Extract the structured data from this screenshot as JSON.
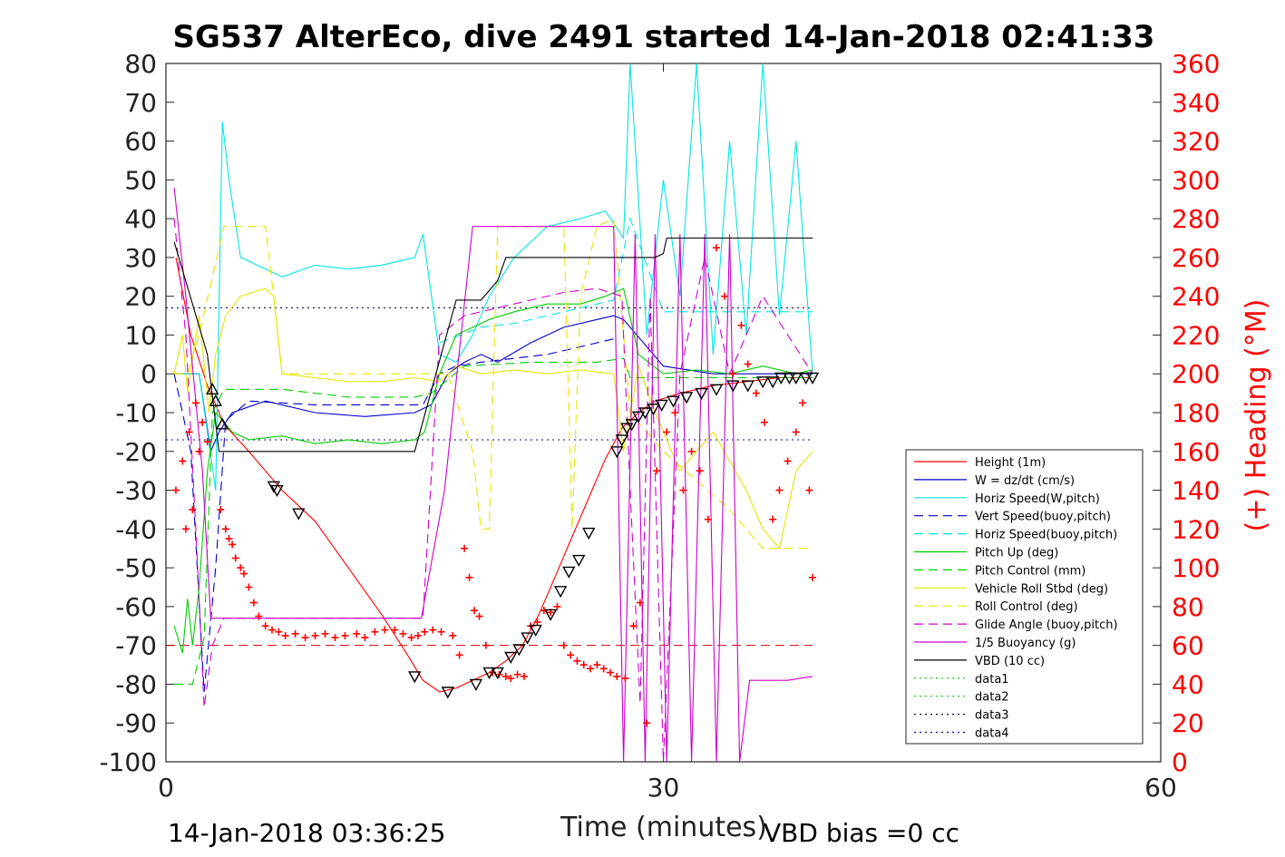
{
  "chart_data": {
    "type": "line",
    "title": "SG537 AlterEco, dive 2491 started 14-Jan-2018 02:41:33",
    "xlabel": "Time (minutes)",
    "ylabel_right": "(+) Heading (°M)",
    "xlim": [
      0,
      60
    ],
    "ylim": [
      -100,
      80
    ],
    "ylim_right": [
      0,
      360
    ],
    "x_ticks": [
      0,
      30,
      60
    ],
    "y_ticks": [
      80,
      70,
      60,
      50,
      40,
      30,
      20,
      10,
      0,
      -10,
      -20,
      -30,
      -40,
      -50,
      -60,
      -70,
      -80,
      -90,
      -100
    ],
    "y_ticks_right": [
      360,
      340,
      320,
      300,
      280,
      260,
      240,
      220,
      200,
      180,
      160,
      140,
      120,
      100,
      80,
      60,
      40,
      20,
      0
    ],
    "footer_left": "14-Jan-2018 03:36:25",
    "footer_right": "VBD bias =0 cc",
    "legend": [
      {
        "label": "Height (1m)",
        "color": "#ff0000",
        "dash": "solid"
      },
      {
        "label": "W = dz/dt (cm/s)",
        "color": "#0000cc",
        "dash": "solid"
      },
      {
        "label": "Horiz Speed(W,pitch)",
        "color": "#00e5e5",
        "dash": "solid"
      },
      {
        "label": "Vert Speed(buoy,pitch)",
        "color": "#0000cc",
        "dash": "dash"
      },
      {
        "label": "Horiz Speed(buoy,pitch)",
        "color": "#00e5e5",
        "dash": "dash"
      },
      {
        "label": "Pitch Up (deg)",
        "color": "#00cc00",
        "dash": "solid"
      },
      {
        "label": "Pitch Control (mm)",
        "color": "#00cc00",
        "dash": "dash"
      },
      {
        "label": "Vehicle Roll Stbd (deg)",
        "color": "#e5e500",
        "dash": "solid"
      },
      {
        "label": "Roll Control (deg)",
        "color": "#e5e500",
        "dash": "dash"
      },
      {
        "label": "Glide Angle (buoy,pitch)",
        "color": "#cc00cc",
        "dash": "dash"
      },
      {
        "label": "1/5 Buoyancy (g)",
        "color": "#cc00cc",
        "dash": "solid"
      },
      {
        "label": "VBD (10 cc)",
        "color": "#000000",
        "dash": "solid"
      },
      {
        "label": "data1",
        "color": "#00cc00",
        "dash": "dot"
      },
      {
        "label": "data2",
        "color": "#00cc00",
        "dash": "dot"
      },
      {
        "label": "data3",
        "color": "#000066",
        "dash": "dot"
      },
      {
        "label": "data4",
        "color": "#0000cc",
        "dash": "dot"
      }
    ],
    "series": [
      {
        "name": "Height (1m)",
        "color": "#ff0000",
        "dash": "solid",
        "x": [
          0.6,
          1.5,
          2.5,
          3.5,
          5,
          7,
          9,
          11,
          13,
          14.5,
          15.5,
          16.5,
          17.5,
          18.5,
          19.5,
          20.5,
          21.5,
          22.5,
          23.5,
          24.5,
          25.5,
          26.5,
          27.5,
          28.5,
          29.5,
          31,
          33,
          35,
          37,
          39
        ],
        "y": [
          30,
          10,
          -3,
          -13,
          -20,
          -30,
          -38,
          -50,
          -62,
          -72,
          -79,
          -82,
          -81,
          -79,
          -77,
          -74,
          -70,
          -62,
          -52,
          -42,
          -32,
          -22,
          -14,
          -10,
          -7,
          -5,
          -3,
          -2,
          -1,
          -1
        ]
      },
      {
        "name": "W = dz/dt (cm/s)",
        "color": "#0000cc",
        "dash": "solid",
        "x": [
          0.5,
          2,
          2.7,
          3.2,
          4,
          6,
          9,
          12,
          15,
          16,
          17,
          18,
          19,
          20,
          22,
          24,
          26,
          27,
          27.6,
          30,
          33,
          36,
          39
        ],
        "y": [
          0,
          0,
          -20,
          -15,
          -10,
          -7,
          -10,
          -11,
          -10,
          -8,
          0,
          3,
          5,
          3,
          8,
          12,
          14,
          15,
          14,
          2,
          0,
          0,
          0
        ]
      },
      {
        "name": "Horiz Speed(W,pitch)",
        "color": "#00e5e5",
        "dash": "solid",
        "x": [
          0.5,
          2,
          3,
          3.4,
          3.8,
          4.5,
          5.5,
          7,
          9,
          11,
          13,
          15,
          15.5,
          16.5,
          17.5,
          18.5,
          19.5,
          21,
          23,
          25,
          26.5,
          27.6,
          28,
          29,
          30,
          31,
          32,
          33,
          34,
          35,
          36,
          37,
          38,
          39
        ],
        "y": [
          0,
          0,
          -30,
          65,
          50,
          30,
          28,
          25,
          28,
          27,
          28,
          30,
          36,
          5,
          3,
          10,
          20,
          30,
          38,
          40,
          42,
          35,
          80,
          10,
          50,
          20,
          80,
          5,
          60,
          10,
          80,
          15,
          60,
          0
        ]
      },
      {
        "name": "Vert Speed(buoy,pitch)",
        "color": "#0000cc",
        "dash": "dash",
        "x": [
          0.5,
          1.5,
          2.3,
          3,
          3.6,
          5,
          9,
          14,
          15.5,
          16.5,
          17.5,
          19,
          21,
          23,
          25,
          27
        ],
        "y": [
          0,
          -20,
          -82,
          -50,
          -12,
          -7,
          -8,
          -8,
          -8,
          0,
          2,
          3,
          4,
          5,
          7,
          9
        ]
      },
      {
        "name": "Horiz Speed(buoy,pitch)",
        "color": "#00e5e5",
        "dash": "dash",
        "x": [
          16.5,
          19,
          21,
          23,
          25,
          27,
          28,
          30,
          32,
          34,
          36,
          37,
          39
        ],
        "y": [
          8,
          12,
          13,
          15,
          17,
          19,
          40,
          16,
          16,
          16,
          16,
          16,
          16
        ]
      },
      {
        "name": "Pitch Up (deg)",
        "color": "#00cc00",
        "dash": "solid",
        "x": [
          0.5,
          1,
          1.3,
          1.6,
          2,
          2.5,
          3,
          3.4,
          4,
          5,
          7,
          9,
          11,
          13,
          15,
          15.6,
          16.5,
          17.5,
          18.5,
          19.5,
          21,
          23,
          25,
          26.5,
          27.6,
          28.5,
          30,
          32,
          34,
          36,
          38,
          39
        ],
        "y": [
          -65,
          -72,
          -58,
          -70,
          -55,
          -25,
          -10,
          -12,
          -15,
          -17,
          -16,
          -18,
          -17,
          -18,
          -17,
          -15,
          0,
          10,
          12,
          14,
          16,
          18,
          18,
          20,
          22,
          5,
          0,
          1,
          0,
          2,
          0,
          1
        ]
      },
      {
        "name": "Pitch Control (mm)",
        "color": "#00cc00",
        "dash": "dash",
        "x": [
          0.5,
          1.6,
          2.3,
          2.8,
          3.5,
          7,
          11,
          15,
          16,
          18,
          22,
          26,
          27.6,
          28,
          30,
          33,
          36,
          39
        ],
        "y": [
          -80,
          -80,
          -68,
          -10,
          -4,
          -4,
          -6,
          -6,
          -5,
          2,
          3,
          3,
          4,
          -1,
          -1,
          -1,
          -1,
          -1
        ]
      },
      {
        "name": "Vehicle Roll Stbd (deg)",
        "color": "#e5e500",
        "dash": "solid",
        "x": [
          0.5,
          1,
          1.3,
          2,
          2.6,
          3,
          3.6,
          4.5,
          6,
          6.5,
          7,
          9,
          11,
          13,
          15,
          16.5,
          17.5,
          19,
          21,
          23,
          25,
          27,
          27.6,
          28.5,
          29.5,
          31,
          33,
          35,
          36,
          37,
          38,
          39
        ],
        "y": [
          0,
          10,
          -5,
          15,
          -10,
          5,
          15,
          20,
          22,
          20,
          0,
          -1,
          -2,
          -2,
          -1,
          -2,
          2,
          0,
          1,
          0,
          1,
          0,
          -20,
          2,
          -10,
          -25,
          -15,
          -30,
          -40,
          -45,
          -25,
          -20
        ]
      },
      {
        "name": "Roll Control (deg)",
        "color": "#e5e500",
        "dash": "dash",
        "x": [
          0.5,
          1.3,
          2,
          3.5,
          6,
          6.5,
          7,
          11,
          15,
          17,
          18.5,
          19,
          19.5,
          20,
          22,
          24,
          24.5,
          25,
          26,
          27,
          28,
          30,
          34,
          36,
          38,
          39
        ],
        "y": [
          0,
          0,
          10,
          38,
          38,
          20,
          0,
          0,
          0,
          0,
          -20,
          -40,
          -40,
          38,
          38,
          38,
          -40,
          20,
          38,
          40,
          -10,
          -20,
          -35,
          -45,
          -45,
          -45
        ]
      },
      {
        "name": "Glide Angle (buoy,pitch)",
        "color": "#cc00cc",
        "dash": "dash",
        "x": [
          0.5,
          1.2,
          1.8,
          2.3,
          2.8,
          3.5,
          5,
          8,
          12,
          15.5,
          16.5,
          18,
          20,
          22,
          24,
          26,
          27.5,
          28,
          28.6,
          29.2,
          30,
          31,
          32.5,
          34,
          36,
          39
        ],
        "y": [
          40,
          10,
          -40,
          -86,
          -70,
          -63,
          -63,
          -63,
          -63,
          -63,
          10,
          15,
          17,
          19,
          21,
          22,
          20,
          -30,
          -85,
          20,
          -100,
          0,
          30,
          0,
          20,
          0
        ]
      },
      {
        "name": "1/5 Buoyancy (g)",
        "color": "#cc00cc",
        "dash": "solid",
        "x": [
          0.5,
          1.2,
          2.2,
          2.7,
          3.3,
          4.5,
          7,
          10,
          13,
          15.4,
          16.8,
          18.5,
          19.8,
          21,
          24,
          27,
          27.6,
          28.3,
          28.9,
          29.5,
          30.2,
          31,
          31.7,
          32.5,
          33.2,
          34,
          34.6,
          35.2,
          35.8,
          36.5,
          37.5,
          39
        ],
        "y": [
          48,
          20,
          -25,
          -63,
          -63,
          -63,
          -63,
          -63,
          -63,
          -63,
          -30,
          38,
          38,
          38,
          38,
          38,
          -100,
          36,
          -100,
          36,
          -100,
          36,
          -100,
          36,
          -100,
          36,
          -100,
          -79,
          -79,
          -79,
          -79,
          -78
        ]
      },
      {
        "name": "VBD (10 cc)",
        "color": "#000000",
        "dash": "solid",
        "x": [
          0.5,
          2.5,
          3.2,
          4,
          8,
          12,
          15,
          17.5,
          18.5,
          19,
          20,
          20.5,
          22,
          24,
          26,
          28.5,
          29.5,
          30,
          30.2,
          33,
          36,
          39
        ],
        "y": [
          34,
          5,
          -20,
          -20,
          -20,
          -20,
          -20,
          19,
          19,
          19,
          24,
          30,
          30,
          30,
          30,
          30,
          30,
          31,
          35,
          35,
          35,
          35
        ]
      }
    ],
    "reference_lines": [
      {
        "y": 17,
        "color": "#000066",
        "dash": "dot"
      },
      {
        "y": -17,
        "color": "#0000cc",
        "dash": "dot"
      },
      {
        "y": -70,
        "color": "#cc0000",
        "dash": "dash"
      }
    ],
    "triangle_markers": {
      "x": [
        2.8,
        3,
        3.4,
        6.5,
        6.7,
        8,
        15,
        17,
        18.7,
        19.5,
        20,
        20.8,
        21.3,
        21.8,
        22.3,
        23.2,
        23.8,
        24.3,
        24.9,
        25.5,
        27.2,
        27.5,
        27.8,
        28.1,
        28.5,
        28.9,
        29.4,
        29.9,
        30.6,
        31.4,
        32.3,
        33.2,
        34.2,
        35.1,
        36,
        36.6,
        37.1,
        37.6,
        38,
        38.6,
        39
      ],
      "y": [
        -4,
        -7,
        -13,
        -29,
        -30,
        -36,
        -78,
        -82,
        -80,
        -77,
        -77,
        -73,
        -71,
        -68,
        -66,
        -62,
        -56,
        -51,
        -48,
        -41,
        -20,
        -17,
        -14,
        -13,
        -11,
        -10,
        -9,
        -8,
        -7,
        -6,
        -5,
        -4,
        -3,
        -3,
        -2,
        -2,
        -1,
        -1,
        -1,
        -1,
        -1
      ]
    },
    "heading_markers": {
      "x": [
        0.6,
        1,
        1.2,
        1.4,
        1.6,
        1.8,
        2,
        2.2,
        2.5,
        3.3,
        3.6,
        3.8,
        4,
        4.2,
        4.5,
        4.7,
        5,
        5.3,
        5.6,
        6,
        6.4,
        6.8,
        7.2,
        7.8,
        8.4,
        9,
        9.6,
        10.2,
        10.8,
        11.5,
        12,
        12.6,
        13.2,
        13.8,
        14.3,
        14.8,
        15.2,
        15.6,
        16.1,
        16.6,
        17.3,
        17.7,
        18,
        18.3,
        18.6,
        18.9,
        19.3,
        19.7,
        20.1,
        20.5,
        20.8,
        21.2,
        21.6,
        22,
        22.4,
        22.8,
        23.2,
        23.6,
        24,
        24.4,
        24.8,
        25.2,
        25.6,
        26,
        26.4,
        26.8,
        27.2,
        27.7,
        28.2,
        28.6,
        29,
        29.6,
        30.2,
        30.7,
        31.2,
        31.7,
        32.2,
        32.7,
        33.2,
        33.7,
        34.2,
        34.7,
        35.1,
        35.6,
        36.1,
        36.6,
        37,
        37.5,
        38,
        38.4,
        38.8,
        39
      ],
      "y": [
        140,
        155,
        120,
        170,
        130,
        185,
        160,
        175,
        165,
        130,
        120,
        115,
        112,
        105,
        100,
        97,
        90,
        82,
        75,
        70,
        68,
        67,
        65,
        66,
        64,
        65,
        66,
        64,
        65,
        66,
        64,
        67,
        68,
        68,
        66,
        64,
        65,
        67,
        68,
        67,
        65,
        55,
        110,
        95,
        78,
        75,
        60,
        46,
        45,
        44,
        43,
        45,
        44,
        70,
        72,
        78,
        77,
        80,
        60,
        55,
        52,
        50,
        48,
        50,
        48,
        46,
        44,
        43,
        70,
        82,
        20,
        150,
        170,
        180,
        140,
        160,
        150,
        125,
        265,
        240,
        200,
        225,
        205,
        190,
        175,
        125,
        140,
        155,
        170,
        185,
        140,
        95
      ]
    }
  }
}
